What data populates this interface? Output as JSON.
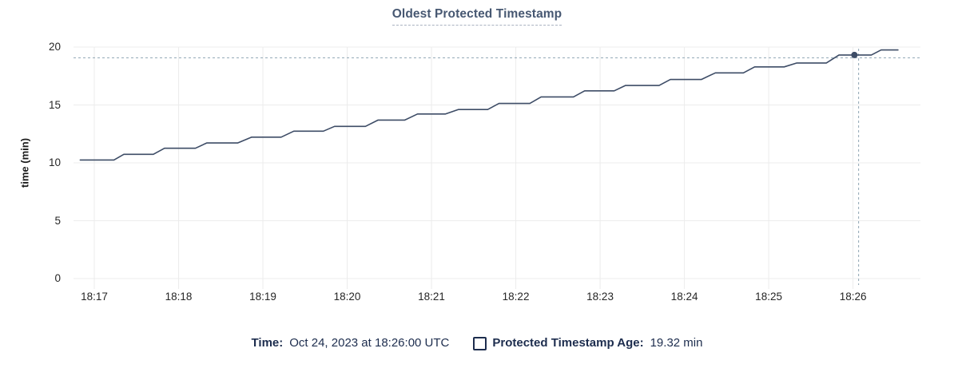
{
  "title": "Oldest Protected Timestamp",
  "legend": {
    "time_label": "Time:",
    "time_value": "Oct 24, 2023 at 18:26:00 UTC",
    "series_label": "Protected Timestamp Age:",
    "series_value": "19.32 min"
  },
  "chart_data": {
    "type": "line",
    "title": "Oldest Protected Timestamp",
    "xlabel": "",
    "ylabel": "time (min)",
    "ylim": [
      0,
      20
    ],
    "y_ticks": [
      0,
      5,
      10,
      15,
      20
    ],
    "x_tick_labels": [
      "18:17",
      "18:18",
      "18:19",
      "18:20",
      "18:21",
      "18:22",
      "18:23",
      "18:24",
      "18:25",
      "18:26"
    ],
    "x_tick_seconds": [
      0,
      60,
      120,
      180,
      240,
      300,
      360,
      420,
      480,
      540
    ],
    "x_domain_seconds": [
      -14.8,
      588
    ],
    "grid": true,
    "legend_position": "bottom",
    "series": [
      {
        "name": "Protected Timestamp Age",
        "unit": "min",
        "points": [
          [
            -10,
            10.25
          ],
          [
            14,
            10.25
          ],
          [
            21,
            10.74
          ],
          [
            42,
            10.74
          ],
          [
            50,
            11.26
          ],
          [
            72,
            11.26
          ],
          [
            80,
            11.72
          ],
          [
            102,
            11.72
          ],
          [
            112,
            12.22
          ],
          [
            133,
            12.22
          ],
          [
            142,
            12.74
          ],
          [
            163,
            12.74
          ],
          [
            171,
            13.15
          ],
          [
            193,
            13.15
          ],
          [
            202,
            13.7
          ],
          [
            221,
            13.7
          ],
          [
            230,
            14.22
          ],
          [
            250,
            14.22
          ],
          [
            259,
            14.61
          ],
          [
            280,
            14.61
          ],
          [
            288,
            15.13
          ],
          [
            310,
            15.13
          ],
          [
            318,
            15.7
          ],
          [
            341,
            15.7
          ],
          [
            349,
            16.22
          ],
          [
            370,
            16.22
          ],
          [
            378,
            16.68
          ],
          [
            402,
            16.68
          ],
          [
            410,
            17.2
          ],
          [
            432,
            17.2
          ],
          [
            442,
            17.77
          ],
          [
            462,
            17.77
          ],
          [
            470,
            18.29
          ],
          [
            491,
            18.29
          ],
          [
            500,
            18.63
          ],
          [
            521,
            18.63
          ],
          [
            530,
            19.32
          ],
          [
            553,
            19.32
          ],
          [
            560,
            19.75
          ],
          [
            572,
            19.75
          ]
        ]
      }
    ],
    "hover_point": {
      "t_seconds": 541,
      "value": 19.32,
      "time_label": "Oct 24, 2023 at 18:26:00 UTC",
      "crosshair_t_seconds": 544,
      "crosshair_value": 19.08
    },
    "colors": {
      "line": "#3d4c66",
      "dot": "#3d4c66",
      "grid": "#ececec",
      "crosshair": "#8fa5b3",
      "title": "#475872",
      "legend_text": "#1d2d4e",
      "tick_text": "#262626"
    }
  }
}
